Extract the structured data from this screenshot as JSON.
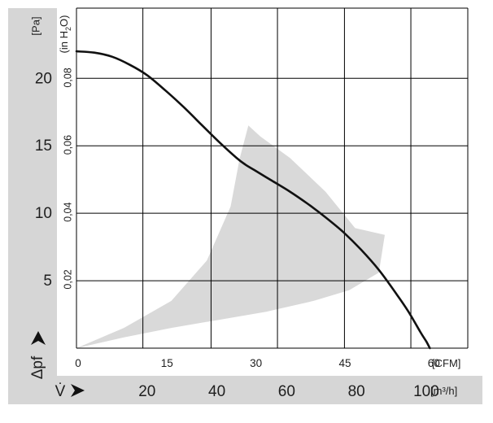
{
  "chart_data": {
    "type": "line",
    "x_axis": {
      "unit": "[CFM]",
      "range": [
        0,
        66
      ],
      "ticks": [
        "0",
        "15",
        "30",
        "45",
        "60"
      ],
      "tick_values": [
        0,
        15,
        30,
        45,
        60
      ],
      "grid_values": [
        0,
        11.2,
        22.7,
        33.9,
        45.2,
        56.4
      ]
    },
    "x2_axis": {
      "symbol": "V̇",
      "unit": "[m³/h]",
      "ticks": [
        "20",
        "40",
        "60",
        "80",
        "100"
      ],
      "tick_values": [
        20,
        40,
        60,
        80,
        100
      ]
    },
    "y_axis": {
      "symbol": "Δpf",
      "unit": "[Pa]",
      "range": [
        0,
        25.2
      ],
      "ticks": [
        "5",
        "10",
        "15",
        "20"
      ],
      "tick_values": [
        5,
        10,
        15,
        20
      ]
    },
    "y2_axis": {
      "unit_prefix": "(in H",
      "unit_subscript": "2",
      "unit_suffix": "O)",
      "ticks": [
        "0,02",
        "0,04",
        "0,06",
        "0,08"
      ],
      "tick_values": [
        0.02,
        0.04,
        0.06,
        0.08
      ]
    },
    "grid": true,
    "series": [
      {
        "type": "line",
        "color": "#111111",
        "x": [
          0,
          3,
          6,
          9,
          12,
          15,
          18,
          21,
          24,
          27,
          28.5,
          30,
          33,
          36,
          39,
          42,
          45,
          48,
          51,
          54,
          56,
          58,
          59,
          59.6
        ],
        "y": [
          22.0,
          21.9,
          21.6,
          21.0,
          20.2,
          19.1,
          17.9,
          16.6,
          15.3,
          14.1,
          13.6,
          13.2,
          12.4,
          11.6,
          10.7,
          9.7,
          8.6,
          7.3,
          5.8,
          4.0,
          2.7,
          1.2,
          0.5,
          0
        ]
      }
    ],
    "shaded_region": {
      "color": "#d9d9d9",
      "x": [
        0,
        8,
        16,
        22,
        26,
        27.5,
        29,
        31,
        36,
        42,
        47,
        52,
        51,
        46,
        40,
        32,
        24,
        16,
        8,
        0
      ],
      "y": [
        0,
        1.5,
        3.5,
        6.5,
        10.5,
        14.0,
        16.5,
        15.7,
        14.1,
        11.6,
        8.9,
        8.4,
        5.6,
        4.3,
        3.5,
        2.7,
        2.1,
        1.5,
        0.8,
        0
      ]
    }
  }
}
